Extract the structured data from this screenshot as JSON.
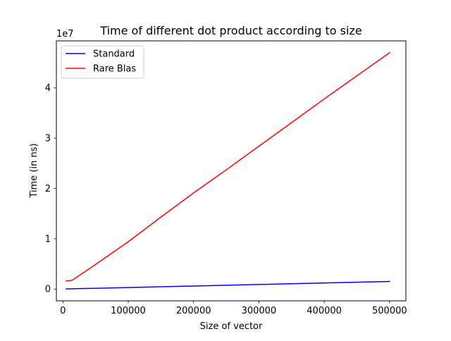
{
  "chart_data": {
    "type": "line",
    "title": "Time of different dot product according to size",
    "xlabel": "Size of vector",
    "ylabel": "Time (in ns)",
    "y_offset_label": "1e7",
    "xlim": [
      -10000,
      525000
    ],
    "ylim": [
      -2350000,
      49350000
    ],
    "grid": false,
    "legend_position": "upper-left",
    "x_ticks": [
      0,
      100000,
      200000,
      300000,
      400000,
      500000
    ],
    "x_tick_labels": [
      "0",
      "100000",
      "200000",
      "300000",
      "400000",
      "500000"
    ],
    "y_ticks": [
      0,
      10000000,
      20000000,
      30000000,
      40000000
    ],
    "y_tick_labels": [
      "0",
      "1",
      "2",
      "3",
      "4"
    ],
    "series": [
      {
        "name": "Standard",
        "color": "#0000ff",
        "x": [
          5000,
          100000,
          200000,
          300000,
          400000,
          500000
        ],
        "y": [
          20000,
          300000,
          600000,
          900000,
          1200000,
          1500000
        ]
      },
      {
        "name": "Rare Blas",
        "color": "#ff0000",
        "x": [
          5000,
          10000,
          15000,
          25000,
          40000,
          60000,
          80000,
          100000,
          150000,
          200000,
          250000,
          300000,
          350000,
          400000,
          450000,
          500000
        ],
        "y": [
          1600000,
          1650000,
          1800000,
          2700000,
          4000000,
          5800000,
          7600000,
          9400000,
          14300000,
          19100000,
          23700000,
          28400000,
          33100000,
          37800000,
          42400000,
          47000000
        ]
      }
    ]
  }
}
